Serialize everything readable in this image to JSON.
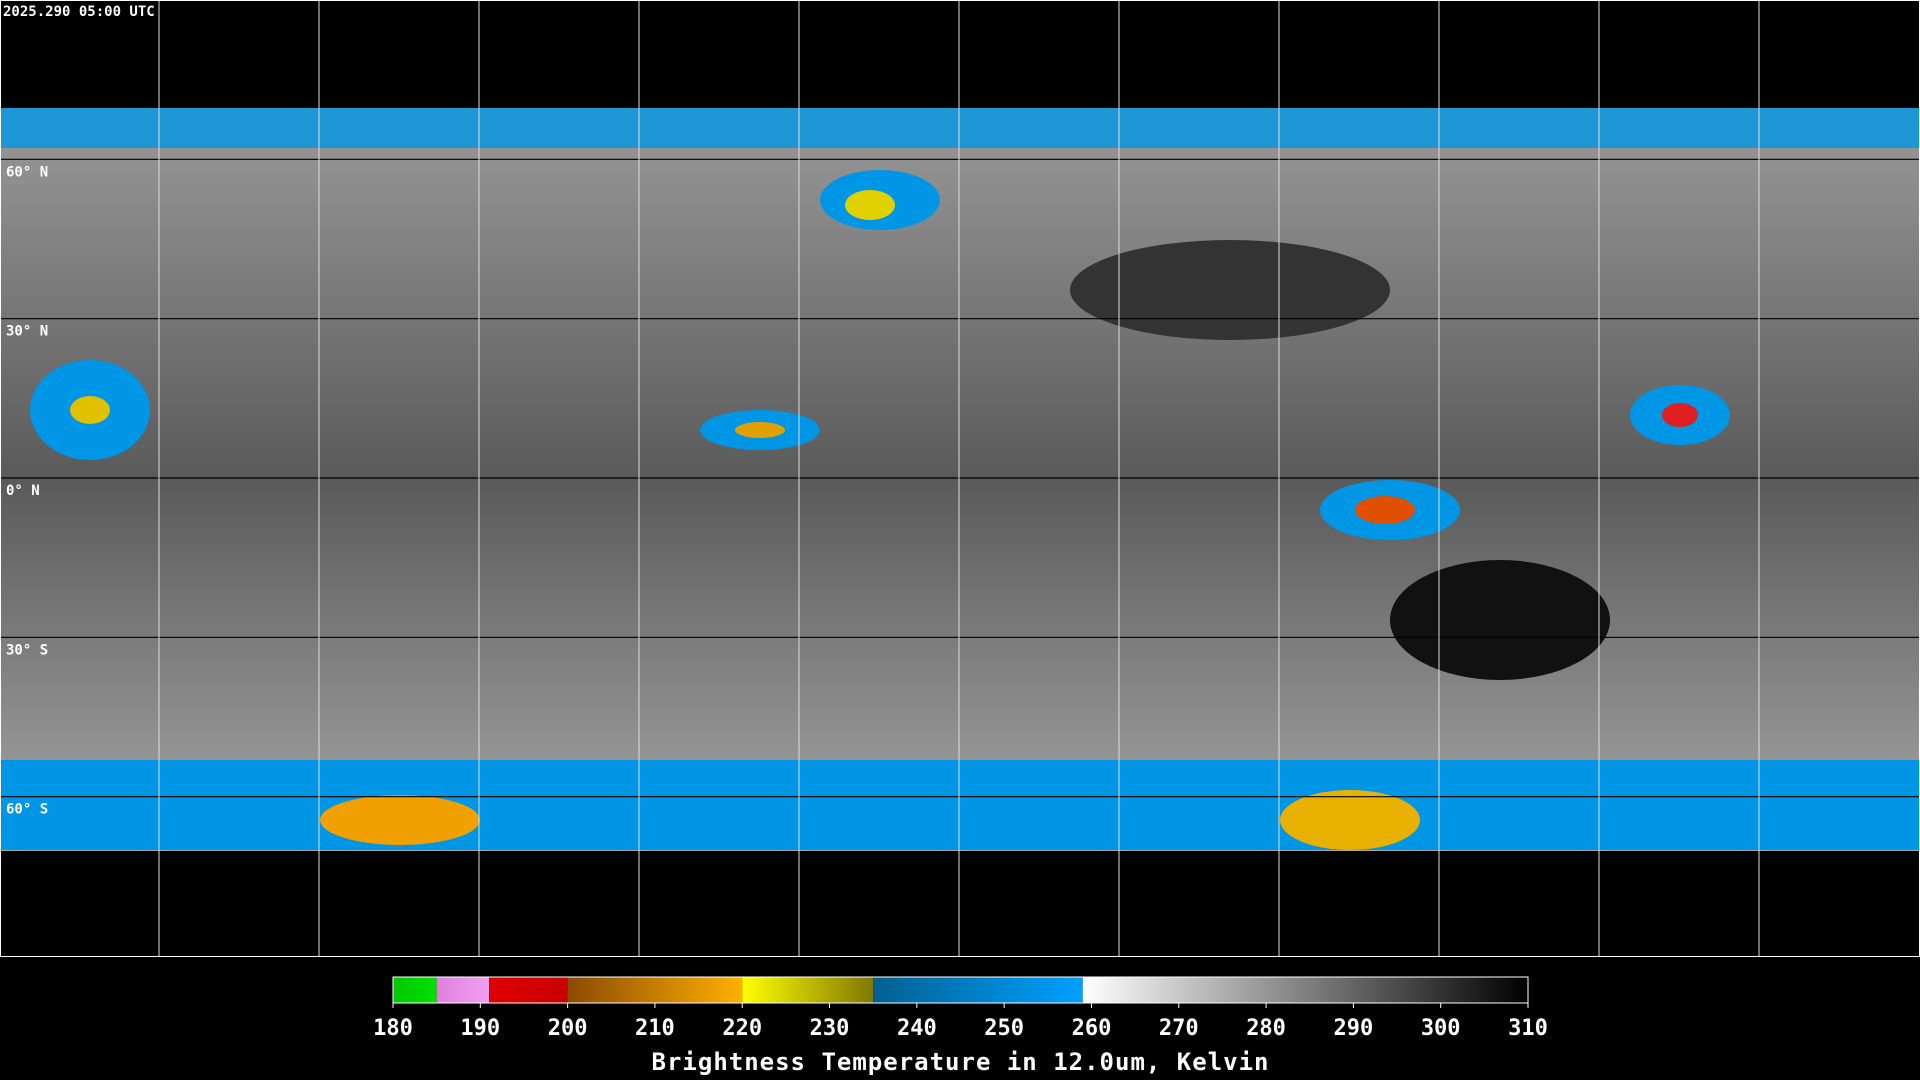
{
  "timestamp": "2025.290 05:00 UTC",
  "map": {
    "lat_lim": [
      -90,
      90
    ],
    "lat_ticks": [
      {
        "value": 60,
        "label": "60° N"
      },
      {
        "value": 30,
        "label": "30° N"
      },
      {
        "value": 0,
        "label": "0° N"
      },
      {
        "value": -30,
        "label": "30° S"
      },
      {
        "value": -60,
        "label": "60° S"
      }
    ]
  },
  "colorbar": {
    "title": "Brightness Temperature in 12.0um, Kelvin",
    "lim": [
      180,
      310
    ],
    "ticks": [
      180,
      190,
      200,
      210,
      220,
      230,
      240,
      250,
      260,
      270,
      280,
      290,
      300,
      310
    ],
    "segments": [
      {
        "from": 180,
        "to": 185,
        "colors": [
          "#00c800",
          "#00e000"
        ]
      },
      {
        "from": 185,
        "to": 191,
        "colors": [
          "#e080e0",
          "#f0a0f0"
        ]
      },
      {
        "from": 191,
        "to": 200,
        "colors": [
          "#e00000",
          "#c80000"
        ]
      },
      {
        "from": 200,
        "to": 220,
        "colors": [
          "#8c4a00",
          "#ffb000"
        ]
      },
      {
        "from": 220,
        "to": 235,
        "colors": [
          "#ffff00",
          "#807800"
        ]
      },
      {
        "from": 235,
        "to": 259,
        "colors": [
          "#006090",
          "#00a0ff"
        ]
      },
      {
        "from": 259,
        "to": 310,
        "colors": [
          "#ffffff",
          "#000000"
        ]
      }
    ]
  }
}
